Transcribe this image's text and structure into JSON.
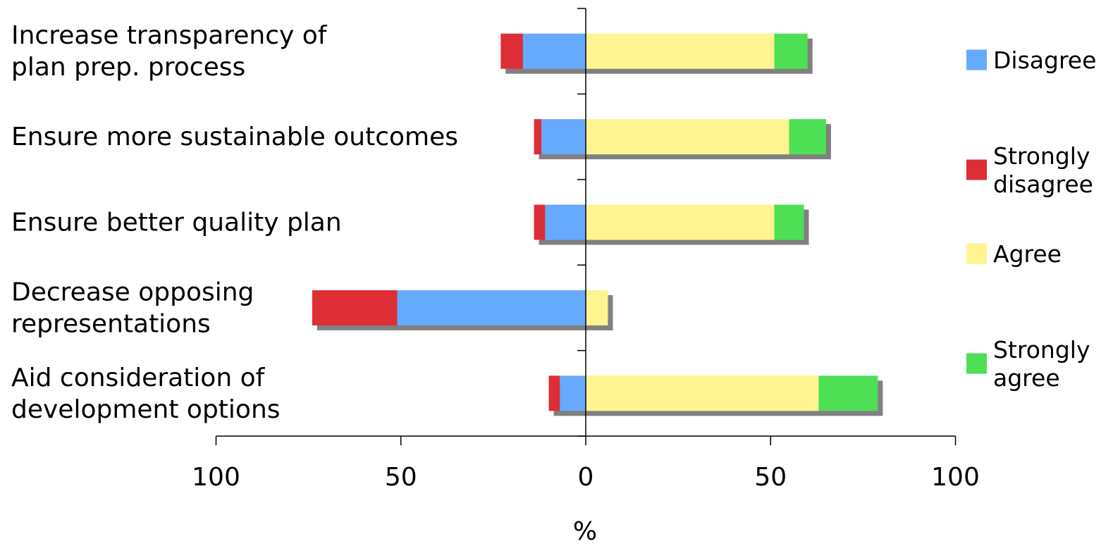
{
  "chart_data": {
    "type": "bar",
    "orientation": "horizontal",
    "stacking": "diverging",
    "categories": [
      [
        "Increase transparency of",
        "plan prep. process"
      ],
      [
        "Ensure more sustainable outcomes"
      ],
      [
        "Ensure better quality plan"
      ],
      [
        "Decrease opposing",
        "representations"
      ],
      [
        "Aid consideration of",
        "development options"
      ]
    ],
    "series": [
      {
        "name": "Disagree",
        "side": "negative",
        "color": "#66aaff",
        "values": [
          17,
          12,
          11,
          51,
          7
        ]
      },
      {
        "name": "Strongly disagree",
        "side": "negative",
        "color": "#dd2e35",
        "values": [
          6,
          2,
          3,
          23,
          3
        ]
      },
      {
        "name": "Agree",
        "side": "positive",
        "color": "#fff48f",
        "values": [
          51,
          55,
          51,
          6,
          63
        ]
      },
      {
        "name": "Strongly agree",
        "side": "positive",
        "color": "#4de055",
        "values": [
          9,
          10,
          8,
          0,
          16
        ]
      }
    ],
    "legend": {
      "position": "right",
      "entries": [
        {
          "label": [
            "Disagree"
          ],
          "color": "#66aaff"
        },
        {
          "label": [
            "Strongly",
            "disagree"
          ],
          "color": "#dd2e35"
        },
        {
          "label": [
            "Agree"
          ],
          "color": "#fff48f"
        },
        {
          "label": [
            "Strongly",
            "agree"
          ],
          "color": "#4de055"
        }
      ]
    },
    "xaxis": {
      "ticks": [
        -100,
        -50,
        0,
        50,
        100
      ],
      "tick_labels": [
        "100",
        "50",
        "0",
        "50",
        "100"
      ],
      "range": [
        -100,
        100
      ],
      "title": "%"
    },
    "shadow_color": "#808080",
    "grid": false
  }
}
